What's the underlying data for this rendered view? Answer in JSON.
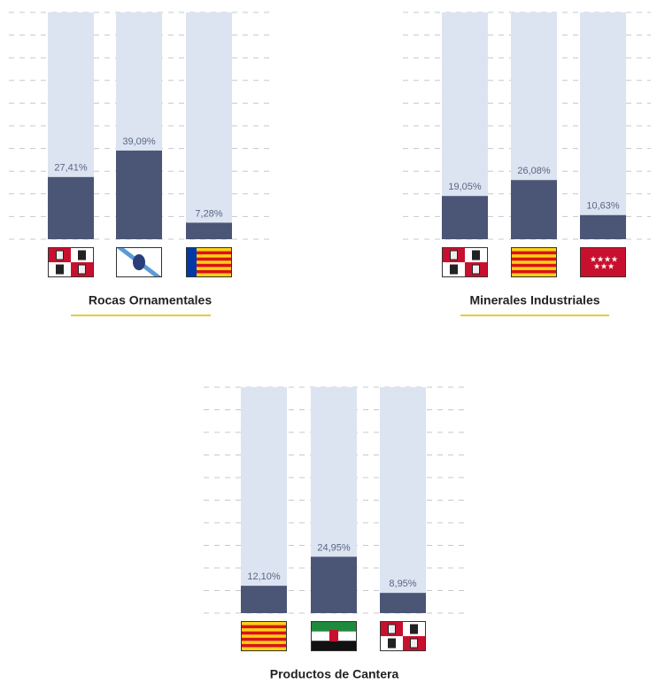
{
  "chart_data": [
    {
      "type": "bar",
      "title": "Rocas Ornamentales",
      "categories": [
        null,
        null,
        null
      ],
      "values": [
        27.41,
        39.09,
        7.28
      ],
      "value_labels": [
        "27,41%",
        "39,09%",
        "7,28%"
      ],
      "color": "#4b5676",
      "ylim": [
        0,
        100
      ],
      "yticks": [
        0,
        10,
        20,
        30,
        40,
        50,
        60,
        70,
        80,
        90,
        100
      ],
      "grid": true
    },
    {
      "type": "bar",
      "title": "Minerales Industriales",
      "categories": [
        null,
        null,
        null
      ],
      "values": [
        19.05,
        26.08,
        10.63
      ],
      "value_labels": [
        "19,05%",
        "26,08%",
        "10,63%"
      ],
      "color": "#4b5676",
      "ylim": [
        0,
        100
      ],
      "yticks": [
        0,
        10,
        20,
        30,
        40,
        50,
        60,
        70,
        80,
        90,
        100
      ],
      "grid": true
    },
    {
      "type": "bar",
      "title": "Productos de Cantera",
      "categories": [
        null,
        null,
        null
      ],
      "values": [
        12.1,
        24.95,
        8.95
      ],
      "value_labels": [
        "12,10%",
        "24,95%",
        "8,95%"
      ],
      "color": "#4b5676",
      "ylim": [
        0,
        100
      ],
      "yticks": [
        0,
        10,
        20,
        30,
        40,
        50,
        60,
        70,
        80,
        90,
        100
      ],
      "grid": true
    }
  ]
}
